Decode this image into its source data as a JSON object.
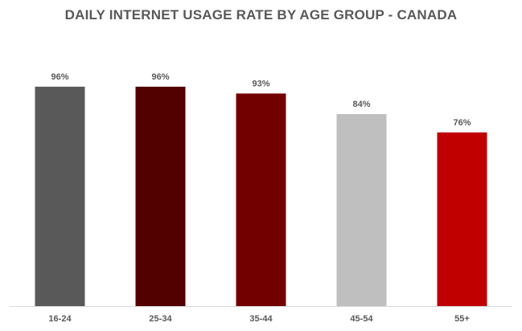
{
  "chart_data": {
    "type": "bar",
    "title": "DAILY INTERNET USAGE RATE BY AGE GROUP - CANADA",
    "categories": [
      "16-24",
      "25-34",
      "35-44",
      "45-54",
      "55+"
    ],
    "values": [
      96,
      96,
      93,
      84,
      76
    ],
    "data_labels": [
      "96%",
      "96%",
      "93%",
      "84%",
      "76%"
    ],
    "colors": [
      "#595959",
      "#520000",
      "#720000",
      "#bfbfbf",
      "#c00000"
    ],
    "xlabel": "",
    "ylabel": "",
    "ylim": [
      0,
      100
    ],
    "grid": false,
    "legend": "none",
    "axis_color": "#d9d9d9"
  }
}
